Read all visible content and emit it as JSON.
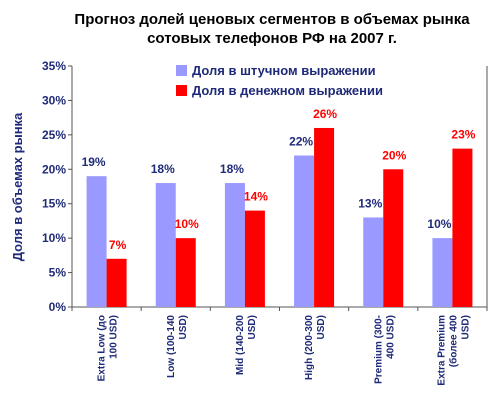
{
  "chart_data": {
    "type": "bar",
    "title_lines": [
      "Прогноз долей ценовых сегментов в объемах рынка",
      "сотовых телефонов РФ на 2007 г."
    ],
    "ylabel": "Доля в объемах рынка",
    "xlabel": "",
    "ylim": [
      0,
      35
    ],
    "yticks": [
      0,
      5,
      10,
      15,
      20,
      25,
      30,
      35
    ],
    "ytick_labels": [
      "0%",
      "5%",
      "10%",
      "15%",
      "20%",
      "25%",
      "30%",
      "35%"
    ],
    "category_lines": [
      [
        "Extra Low (до",
        "100 USD)"
      ],
      [
        "Low (100-140",
        "USD)"
      ],
      [
        "Mid (140-200",
        "USD)"
      ],
      [
        "High (200-300",
        "USD)"
      ],
      [
        "Premium (300-",
        "400 USD)"
      ],
      [
        "Extra Premium",
        "(более 400",
        "USD)"
      ]
    ],
    "series": [
      {
        "name": "Доля в штучном выражении",
        "color": "#9999ff",
        "label_color": "#1f2a78",
        "values": [
          19,
          18,
          18,
          22,
          13,
          10
        ],
        "labels": [
          "19%",
          "18%",
          "18%",
          "22%",
          "13%",
          "10%"
        ]
      },
      {
        "name": "Доля в денежном выражении",
        "color": "#ff0000",
        "label_color": "#ff0000",
        "values": [
          7,
          10,
          14,
          26,
          20,
          23
        ],
        "labels": [
          "7%",
          "10%",
          "14%",
          "26%",
          "20%",
          "23%"
        ]
      }
    ],
    "grid": false,
    "legend_position": "top-center"
  }
}
